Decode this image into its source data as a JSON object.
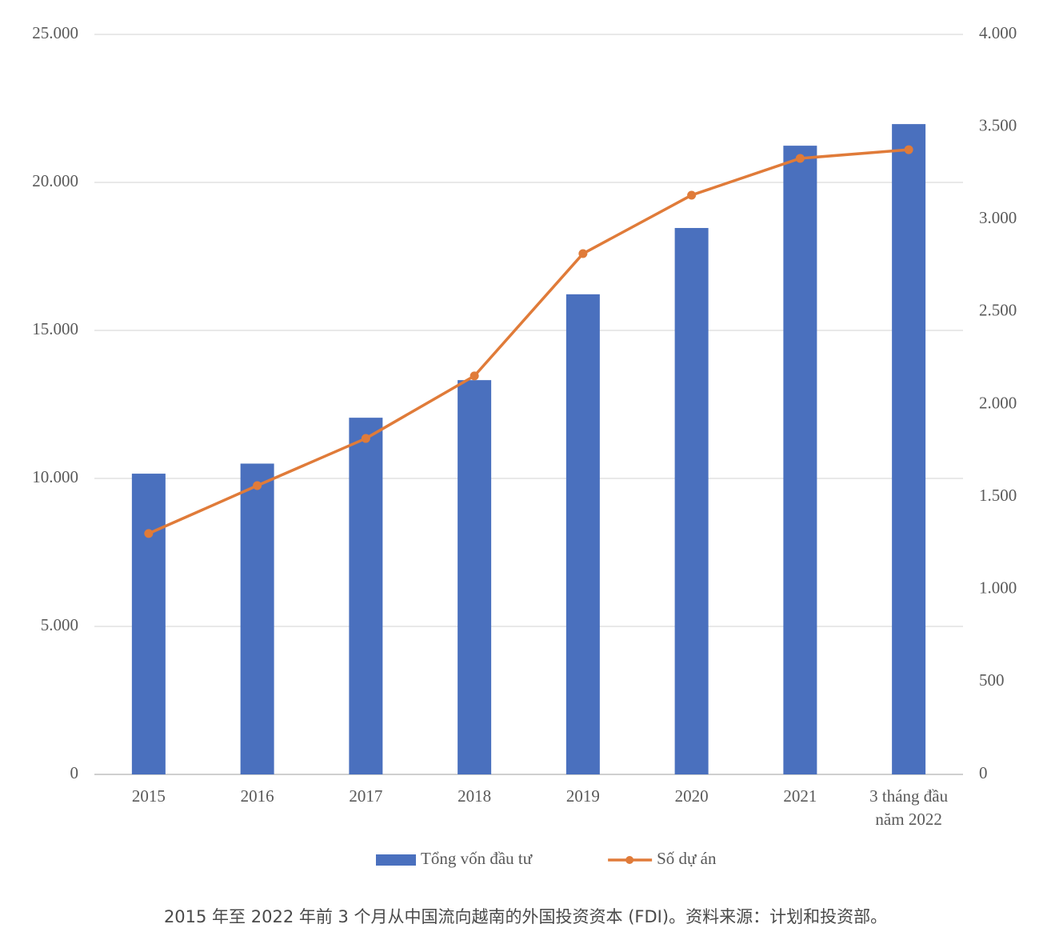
{
  "chart_data": {
    "type": "bar_line",
    "categories": [
      "2015",
      "2016",
      "2017",
      "2018",
      "2019",
      "2020",
      "2021",
      "3 tháng đầu năm 2022"
    ],
    "series": [
      {
        "name": "Tổng vốn đầu tư",
        "type": "bar",
        "color": "#4a70be",
        "values": [
          10160,
          10500,
          12050,
          13320,
          16220,
          18460,
          21240,
          21970
        ]
      },
      {
        "name": "Số dự án",
        "type": "line",
        "axis": "y2",
        "color": "#e07b39",
        "values": [
          1302,
          1561,
          1816,
          2154,
          2815,
          3131,
          3330,
          3377
        ]
      }
    ],
    "ylim": [
      0,
      25000
    ],
    "yticks": [
      0,
      {
        "value": 5000,
        "label": "5.000"
      },
      {
        "value": 10000,
        "label": "10.000"
      },
      {
        "value": 15000,
        "label": "15.000"
      },
      {
        "value": 20000,
        "label": "20.000"
      },
      {
        "value": 25000,
        "label": "25.000"
      }
    ],
    "y2lim": [
      0,
      4000
    ],
    "y2ticks": [
      0,
      500,
      {
        "value": 1000,
        "label": "1.000"
      },
      {
        "value": 1500,
        "label": "1.500"
      },
      {
        "value": 2000,
        "label": "2.000"
      },
      {
        "value": 2500,
        "label": "2.500"
      },
      {
        "value": 3000,
        "label": "3.000"
      },
      {
        "value": 3500,
        "label": "3.500"
      },
      {
        "value": 4000,
        "label": "4.000"
      }
    ],
    "grid": true,
    "legend": "bottom",
    "caption": "2015 年至 2022 年前 3 个月从中国流向越南的外国投资资本 (FDI)。资料来源：计划和投资部。"
  }
}
